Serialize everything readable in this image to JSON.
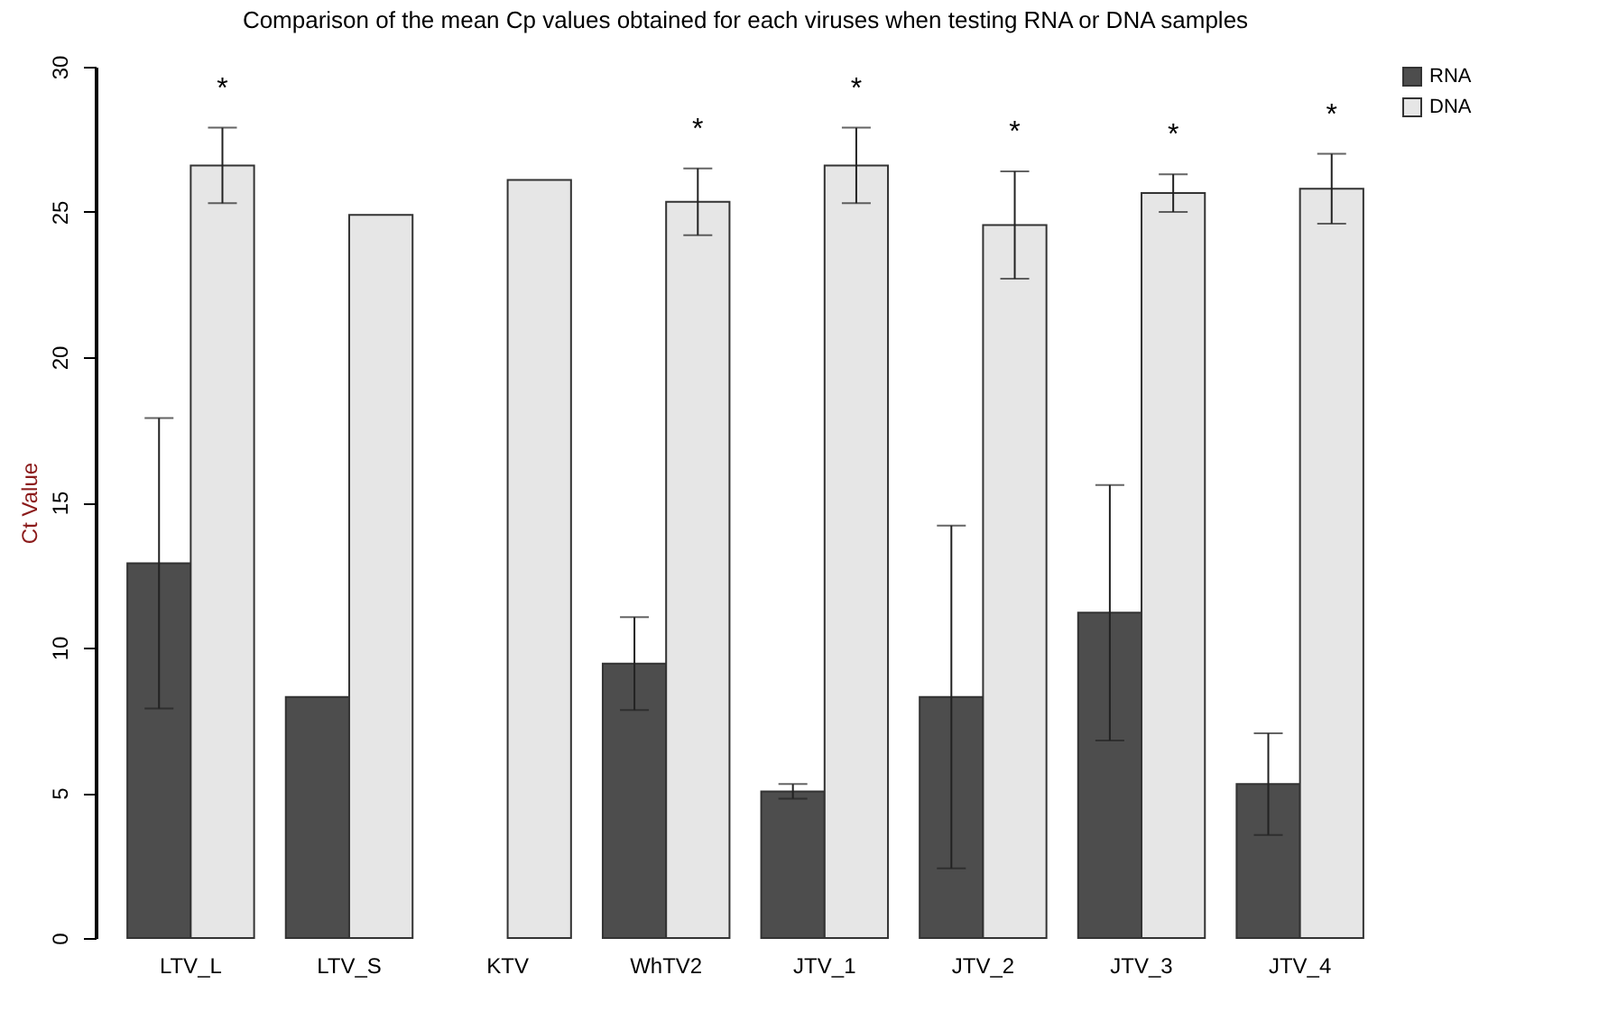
{
  "chart_data": {
    "type": "bar",
    "title": "Comparison of the mean Cp values obtained for each viruses when testing RNA or DNA samples",
    "ylabel": "Ct Value",
    "categories": [
      "LTV_L",
      "LTV_S",
      "KTV",
      "WhTV2",
      "JTV_1",
      "JTV_2",
      "JTV_3",
      "JTV_4"
    ],
    "series": [
      {
        "name": "RNA",
        "color": "#4d4d4d",
        "values": [
          12.9,
          8.3,
          null,
          9.45,
          5.05,
          8.3,
          11.2,
          5.3
        ],
        "errors": [
          5.0,
          null,
          null,
          1.6,
          0.25,
          5.9,
          4.4,
          1.75
        ]
      },
      {
        "name": "DNA",
        "color": "#e6e6e6",
        "values": [
          26.6,
          24.9,
          26.1,
          25.35,
          26.6,
          24.55,
          25.65,
          25.8
        ],
        "errors": [
          1.3,
          null,
          null,
          1.15,
          1.3,
          1.85,
          0.65,
          1.2
        ],
        "value_labels": [
          "*",
          null,
          null,
          "*",
          "*",
          "*",
          "*",
          "*"
        ]
      }
    ],
    "ylim": [
      0,
      30
    ],
    "yticks": [
      0,
      5,
      10,
      15,
      20,
      25,
      30
    ],
    "legend": "top right"
  }
}
